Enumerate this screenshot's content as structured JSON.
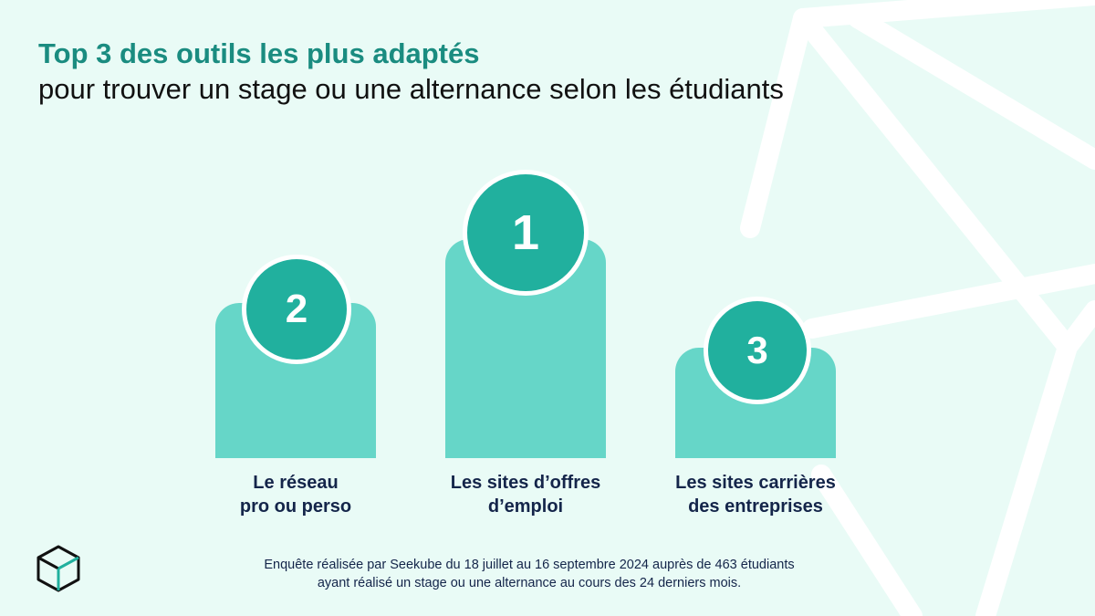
{
  "title": {
    "line1": "Top 3 des outils les plus adaptés",
    "line2": "pour trouver un stage ou une alternance selon les étudiants"
  },
  "podium": [
    {
      "rank": "2",
      "label_line1": "Le réseau",
      "label_line2": "pro ou perso"
    },
    {
      "rank": "1",
      "label_line1": "Les sites d’offres",
      "label_line2": "d’emploi"
    },
    {
      "rank": "3",
      "label_line1": "Les sites carrières",
      "label_line2": "des entreprises"
    }
  ],
  "footnote": {
    "line1": "Enquête réalisée par Seekube du 18 juillet au 16 septembre 2024 auprès de 463 étudiants",
    "line2": "ayant réalisé un stage ou une alternance au cours des 24 derniers mois."
  },
  "colors": {
    "background": "#e9fbf6",
    "title_accent": "#1a8c80",
    "podium_block": "#66d6c8",
    "badge": "#21b09e",
    "label_text": "#14254a"
  },
  "icons": {
    "brand_logo": "cube-logo-icon"
  }
}
